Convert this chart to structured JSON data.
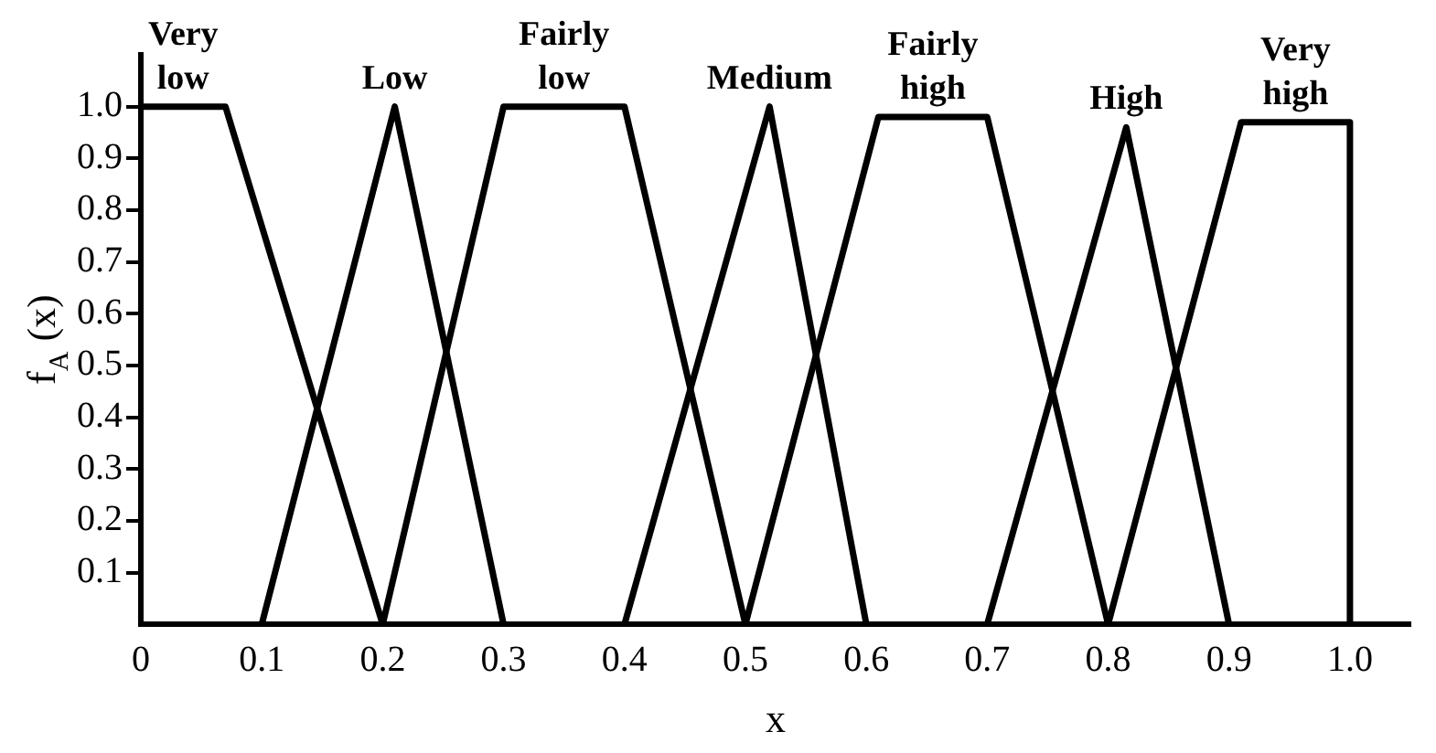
{
  "chart_data": {
    "type": "line",
    "xlabel": "x",
    "ylabel": "f$_{A}$ (x)",
    "xlim": [
      0,
      1.05
    ],
    "ylim": [
      0,
      1.1
    ],
    "xticks": [
      0,
      0.1,
      0.2,
      0.3,
      0.4,
      0.5,
      0.6,
      0.7,
      0.8,
      0.9,
      {
        "value": 1,
        "label": "1.0"
      }
    ],
    "yticks": [
      0.1,
      0.2,
      0.3,
      0.4,
      0.5,
      0.6,
      0.7,
      0.8,
      0.9,
      {
        "value": 1,
        "label": "1.0"
      }
    ],
    "series": [
      {
        "name": "Very low",
        "color": "#000000",
        "x": [
          0,
          0.07,
          0.2
        ],
        "values": [
          1,
          1,
          0
        ]
      },
      {
        "name": "Low",
        "color": "#000000",
        "x": [
          0.1,
          0.21,
          0.3
        ],
        "values": [
          0,
          1,
          0
        ]
      },
      {
        "name": "Fairly low",
        "color": "#000000",
        "x": [
          0.2,
          0.3,
          0.4,
          0.5
        ],
        "values": [
          0,
          1,
          1,
          0
        ]
      },
      {
        "name": "Medium",
        "color": "#000000",
        "x": [
          0.4,
          0.52,
          0.6
        ],
        "values": [
          0,
          1,
          0
        ]
      },
      {
        "name": "Fairly high",
        "color": "#000000",
        "x": [
          0.5,
          0.61,
          0.7,
          0.8
        ],
        "values": [
          0,
          0.98,
          0.98,
          0
        ]
      },
      {
        "name": "High",
        "color": "#000000",
        "x": [
          0.7,
          0.815,
          0.9
        ],
        "values": [
          0,
          0.96,
          0
        ]
      },
      {
        "name": "Very high",
        "color": "#000000",
        "x": [
          0.8,
          0.91,
          1,
          1
        ],
        "values": [
          0,
          0.97,
          0.97,
          0
        ]
      }
    ]
  }
}
